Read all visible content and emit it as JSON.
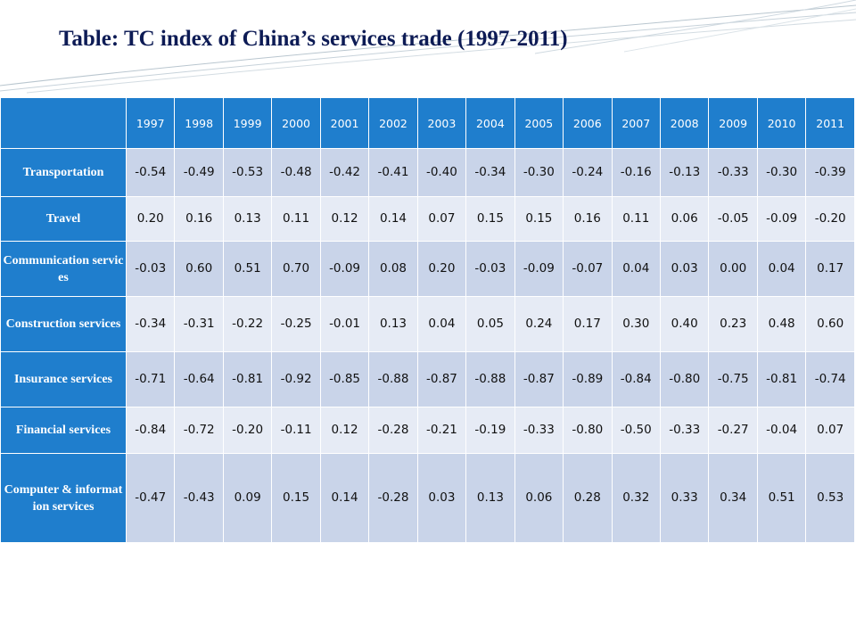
{
  "title": "Table: TC index of China’s services trade (1997-2011)",
  "table": {
    "header_corner": "",
    "years": [
      "1997",
      "1998",
      "1999",
      "2000",
      "2001",
      "2002",
      "2003",
      "2004",
      "2005",
      "2006",
      "2007",
      "2008",
      "2009",
      "2010",
      "2011"
    ],
    "rows": [
      {
        "label": "Transportation",
        "values": [
          "-0.54",
          "-0.49",
          "-0.53",
          "-0.48",
          "-0.42",
          "-0.41",
          "-0.40",
          "-0.34",
          "-0.30",
          "-0.24",
          "-0.16",
          "-0.13",
          "-0.33",
          "-0.30",
          "-0.39"
        ]
      },
      {
        "label": "Travel",
        "values": [
          "0.20",
          "0.16",
          "0.13",
          "0.11",
          "0.12",
          "0.14",
          "0.07",
          "0.15",
          "0.15",
          "0.16",
          "0.11",
          "0.06",
          "-0.05",
          "-0.09",
          "-0.20"
        ]
      },
      {
        "label": "Communication services",
        "values": [
          "-0.03",
          "0.60",
          "0.51",
          "0.70",
          "-0.09",
          "0.08",
          "0.20",
          "-0.03",
          "-0.09",
          "-0.07",
          "0.04",
          "0.03",
          "0.00",
          "0.04",
          "0.17"
        ]
      },
      {
        "label": "Construction services",
        "values": [
          "-0.34",
          "-0.31",
          "-0.22",
          "-0.25",
          "-0.01",
          "0.13",
          "0.04",
          "0.05",
          "0.24",
          "0.17",
          "0.30",
          "0.40",
          "0.23",
          "0.48",
          "0.60"
        ]
      },
      {
        "label": "Insurance services",
        "values": [
          "-0.71",
          "-0.64",
          "-0.81",
          "-0.92",
          "-0.85",
          "-0.88",
          "-0.87",
          "-0.88",
          "-0.87",
          "-0.89",
          "-0.84",
          "-0.80",
          "-0.75",
          "-0.81",
          "-0.74"
        ]
      },
      {
        "label": "Financial services",
        "values": [
          "-0.84",
          "-0.72",
          "-0.20",
          "-0.11",
          "0.12",
          "-0.28",
          "-0.21",
          "-0.19",
          "-0.33",
          "-0.80",
          "-0.50",
          "-0.33",
          "-0.27",
          "-0.04",
          "0.07"
        ]
      },
      {
        "label": "Computer & information services",
        "values": [
          "-0.47",
          "-0.43",
          "0.09",
          "0.15",
          "0.14",
          "-0.28",
          "0.03",
          "0.13",
          "0.06",
          "0.28",
          "0.32",
          "0.33",
          "0.34",
          "0.51",
          "0.53"
        ]
      }
    ]
  },
  "colors": {
    "header_bg": "#1f7ecd",
    "row_odd_bg": "#c9d4e9",
    "row_even_bg": "#e6ebf5",
    "title_color": "#0d1b55"
  }
}
